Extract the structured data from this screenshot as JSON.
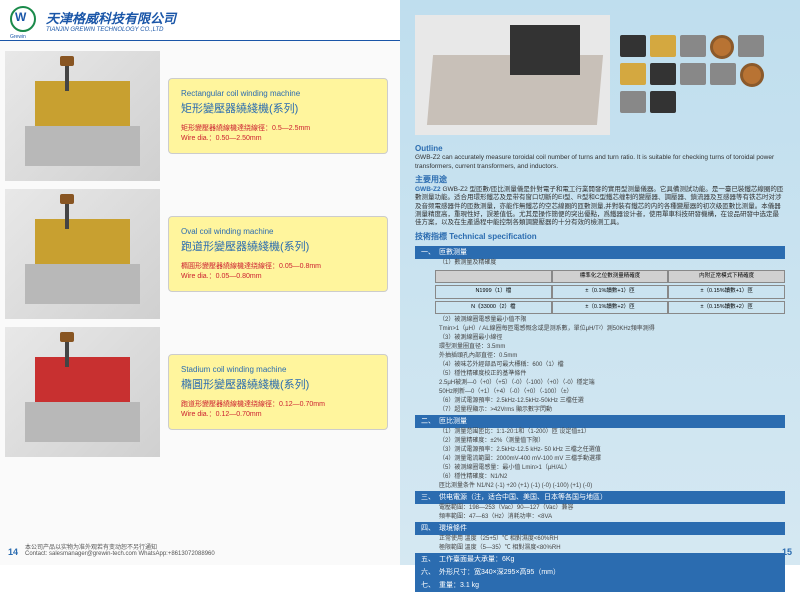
{
  "header": {
    "company_cn": "天津格威科技有限公司",
    "company_en": "TIANJIN GREWIN TECHNOLOGY CO.,LTD",
    "logo_label": "Grewin"
  },
  "left": {
    "page_num": "14",
    "products": [
      {
        "title_en": "Rectangular coil winding machine",
        "title_cn": "矩形變壓器繞綫機(系列)",
        "spec1": "矩形變壓器繞線機達绕線徑：0.5—2.5mm",
        "spec2": "Wire dia.：0.50—2.50mm",
        "img_color": "#c8a030"
      },
      {
        "title_en": "Oval coil winding machine",
        "title_cn": "跑道形變壓器繞綫機(系列)",
        "spec1": "橢圓形變壓器繞線機達绕線徑：0.05—0.8mm",
        "spec2": "Wire dia.：0.05—0.80mm",
        "img_color": "#c8a030"
      },
      {
        "title_en": "Stadium coil winding machine",
        "title_cn": "橢圓形變壓器繞綫機(系列)",
        "spec1": "跑道形變壓器繞線機達绕線徑：0.12—0.70mm",
        "spec2": "Wire dia.：0.12—0.70mm",
        "img_color": "#c83030"
      }
    ],
    "footnote": "本公司产品以实物为准外观若有变动恕不另行通知",
    "contact": "Contact: salesmanager@grewin-tech.com  WhatsApp:+8613072088960"
  },
  "right": {
    "page_num": "15",
    "outline_label": "Outline",
    "outline_text": "GWB-Z2 can accurately measure toroidal coil number of turns and turn ratio. It is suitable for checking turns of toroidal power transformers, current transformers, and inductors.",
    "usage_label": "主要用途",
    "usage_text": "GWB-Z2 型匝數/匝比测量儀是針對電子和電工行業開發的實用型测量儀器。它具備测試功能。是一臺已裝鐵芯線圈的匝數测量功能。适合用環形鐵芯及是带有窗口切斷的EI型、R型和C型鐵芯缠制的變壓器、調壓器、鎮流器及互感器等有铁芯时对涉及音频電感器件的匝数测量，亦能作無鐵芯的空芯線圈的匝數测量,并對裝有鐵芯的内的各種變壓器的初次级匝數比测量。本儀器测量精度高，重現性好，誤差值低。尤其是操作簡便的突出優點，爲鐵器设计者，使用單車科技研發機構，在设品研發中选定最佳方案，以及在生產過程中能控制各類調變壓器的十分有效的檢测工具。",
    "spec_title": "技術指標 Technical specification",
    "sections": [
      {
        "num": "一、",
        "label": "匝數测量"
      },
      {
        "num": "二、",
        "label": "匝比测量"
      },
      {
        "num": "三、",
        "label": "供电電源（注，适合中国、美国、日本等各国与地區）"
      },
      {
        "num": "四、",
        "label": "環境條件"
      },
      {
        "num": "五、",
        "label": "工作臺面最大承量：6Kg"
      },
      {
        "num": "六、",
        "label": "外形尺寸：宽340×深295×高95（mm）"
      },
      {
        "num": "七、",
        "label": "重量：3.1 kg"
      }
    ],
    "turns_sub": {
      "col1": "標準化之位數测量精確度",
      "col2": "内附正常模式下精確度",
      "r1c1": "N1999（1）檔",
      "r1c2": "±（0.1%讀數+1）匝",
      "r1c3": "±（0.15%讀數+1）匝",
      "r2c1": "N《33000（2）檔",
      "r2c2": "±（0.1%讀數+2）匝",
      "r2c3": "±（0.15%讀數+2）匝"
    },
    "turns_list": [
      "（2）被测線圈電感量最小值不限",
      "Tmin>1（μH）/ AL線圈每匝電感慨念或是测系數，單位μH/T²）測50KHz頻率測得",
      "（3）被測線圈最小線徑",
      "環型测量圈直径：3.5mm",
      "外抽插頭孔內部直徑：0.5mm",
      "（4）被味芯外經部品可最大標稱：600（1）檔",
      "（5）穩性精確度校正的基準條件",
      "2.5μH被測—0（+0）（+5）（-0）（-100）（+0）（-0）穩定端",
      "50Hz刷新—0（+1）（+4）（-0）（+0）（-100）（±）",
      "（6）测试電源預率：2.5kHz-12.5kHz-50kHz 三檔任選",
      "（7）超量程顯示：>42Vrms 顯示數字閃動"
    ],
    "ratio_list": [
      "（1）测量范围匝比：1:1-20:1和（1-200）匝 设定值±1）",
      "（2）测量精確度：±2%（测量值下限）",
      "（3）测试電源預率：2.5kHz-12.5 kHz- 50 kHz  三檔之任選值",
      "（4）测量電流範圍：2000mV-400 mV-100 mV 三檔手動選擇",
      "（5）被测線圈電感量：最小值 Lmin>1（μH/AL）",
      "（6）穩性精確度：N1/N2",
      "      匝比测量条件 N1/N2 (-1) +20 (+1) (-1) (-0) (-100) (+1) (-0)"
    ],
    "power_list": [
      "電壓範圍：198—253（Vac）90—127（Vac）兼容",
      "頻率範圍：47—63（Hz）消耗功率：<8VA"
    ],
    "env_list": [
      "正常使用 溫度（25+5）℃ 相對濕度<60%RH",
      "極限範圍 溫度（5—35）℃ 相對濕度<80%RH"
    ]
  },
  "colors": {
    "primary": "#2b6cb0",
    "accent": "#1a56a8",
    "card_bg": "#fff59d",
    "spec_red": "#cc2030",
    "right_bg_top": "#bfdeee"
  }
}
